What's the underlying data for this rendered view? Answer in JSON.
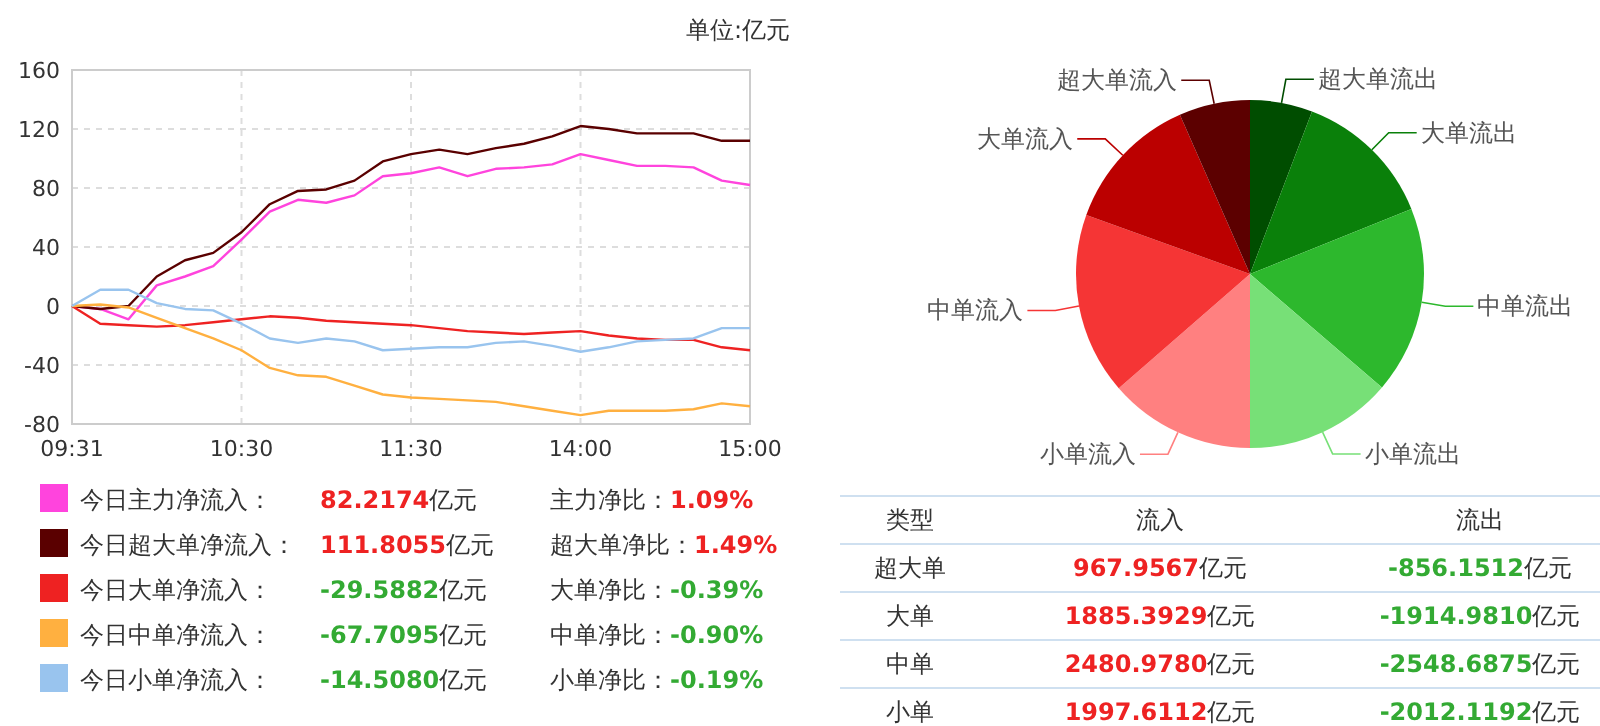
{
  "chart_data": [
    {
      "type": "line",
      "annotations": [
        "单位:亿元",
        "82.2174亿元",
        "主力净比：1.09%",
        "111.8055亿元",
        "超大单净比：1.49%",
        "-29.5882亿元",
        "大单净比：-0.39%",
        "-67.7095亿元",
        "中单净比：-0.90%",
        "-14.5080亿元",
        "小单净比：-0.19%"
      ],
      "categories": [
        "09:31",
        null,
        null,
        null,
        null,
        null,
        "10:30",
        null,
        null,
        null,
        null,
        null,
        "11:30",
        null,
        null,
        null,
        null,
        null,
        "14:00",
        null,
        null,
        null,
        null,
        null,
        "15:00"
      ],
      "ylim": [
        -80,
        160
      ],
      "yticks": [
        -80,
        -40,
        0,
        40,
        80,
        120,
        160
      ],
      "grid": true,
      "legend": "bottom",
      "marker": "none",
      "line_style": "solid",
      "series": [
        {
          "name": "今日主力净流入：",
          "color": "#ff44dd",
          "values": [
            0,
            -2,
            -9,
            14,
            20,
            27,
            45,
            64,
            72,
            70,
            75,
            88,
            90,
            94,
            88,
            93,
            94,
            96,
            103,
            99,
            95,
            95,
            94,
            85,
            82
          ]
        },
        {
          "name": "今日超大单净流入：",
          "color": "#5a0000",
          "values": [
            0,
            -2,
            0,
            20,
            31,
            36,
            50,
            69,
            78,
            79,
            85,
            98,
            103,
            106,
            103,
            107,
            110,
            115,
            122,
            120,
            117,
            117,
            117,
            112,
            112
          ]
        },
        {
          "name": "今日大单净流入：",
          "color": "#ee2222",
          "values": [
            0,
            -12,
            -13,
            -14,
            -13,
            -11,
            -9,
            -7,
            -8,
            -10,
            -11,
            -12,
            -13,
            -15,
            -17,
            -18,
            -19,
            -18,
            -17,
            -20,
            -22,
            -23,
            -23,
            -28,
            -30
          ]
        },
        {
          "name": "今日中单净流入：",
          "color": "#ffb040",
          "values": [
            0,
            1,
            -1,
            -8,
            -15,
            -22,
            -30,
            -42,
            -47,
            -48,
            -54,
            -60,
            -62,
            -63,
            -64,
            -65,
            -68,
            -71,
            -74,
            -71,
            -71,
            -71,
            -70,
            -66,
            -68
          ]
        },
        {
          "name": "今日小单净流入：",
          "color": "#99c4ee",
          "values": [
            0,
            11,
            11,
            2,
            -2,
            -3,
            -12,
            -22,
            -25,
            -22,
            -24,
            -30,
            -29,
            -28,
            -28,
            -25,
            -24,
            -27,
            -31,
            -28,
            -24,
            -23,
            -22,
            -15,
            -15
          ]
        }
      ]
    },
    {
      "type": "pie",
      "categories": [
        "超大单流出",
        "大单流出",
        "中单流出",
        "小单流出",
        "小单流入",
        "中单流入",
        "大单流入",
        "超大单流入"
      ],
      "values": [
        5.8,
        13.1,
        17.4,
        13.7,
        13.6,
        16.9,
        12.9,
        6.6
      ],
      "colors": [
        "#004d00",
        "#0a800a",
        "#2db82d",
        "#77e077",
        "#ff8080",
        "#f53535",
        "#bb0000",
        "#5c0000"
      ]
    },
    {
      "type": "other",
      "categories": [
        "类型",
        "流入",
        "流出"
      ],
      "y_categories": [
        "超大单",
        "大单",
        "中单",
        "小单"
      ],
      "cell_labels": [
        [
          "967.9567亿元",
          "-856.1512亿元"
        ],
        [
          "1885.3929亿元",
          "-1914.9810亿元"
        ],
        [
          "2480.9780亿元",
          "-2548.6875亿元"
        ],
        [
          "1997.6112亿元",
          "-2012.1192亿元"
        ]
      ]
    }
  ]
}
